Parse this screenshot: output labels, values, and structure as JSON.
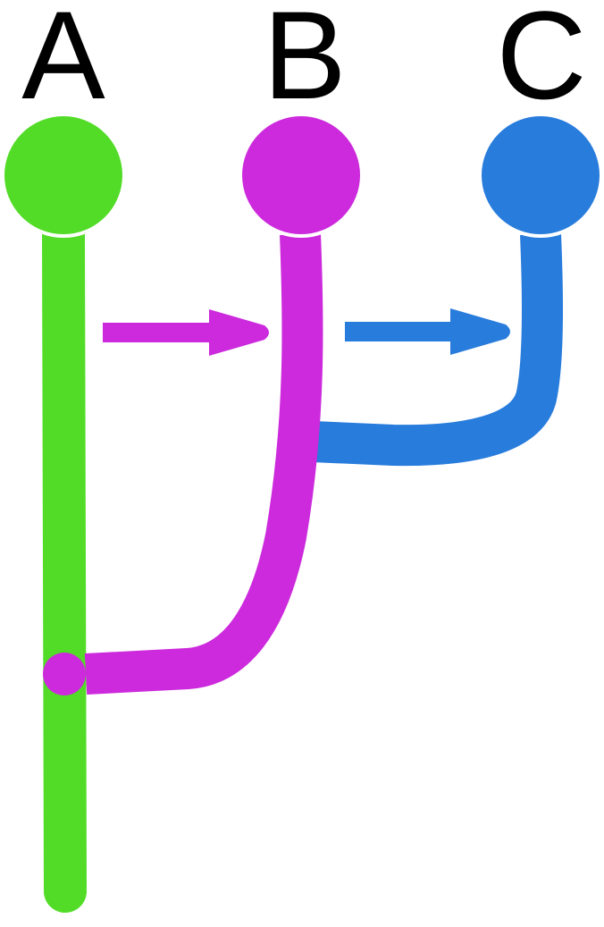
{
  "diagram": {
    "nodes": [
      {
        "id": "A",
        "label": "A",
        "color": "#52dc27"
      },
      {
        "id": "B",
        "label": "B",
        "color": "#cc2adc"
      },
      {
        "id": "C",
        "label": "C",
        "color": "#287cdc"
      }
    ],
    "edges": [
      {
        "from": "A",
        "to": "B",
        "kind": "arrow",
        "color": "#cc2adc"
      },
      {
        "from": "B",
        "to": "C",
        "kind": "arrow",
        "color": "#287cdc"
      },
      {
        "from": "B",
        "to": "A",
        "kind": "merge",
        "color": "#cc2adc"
      },
      {
        "from": "C",
        "to": "B",
        "kind": "merge",
        "color": "#287cdc"
      }
    ]
  }
}
